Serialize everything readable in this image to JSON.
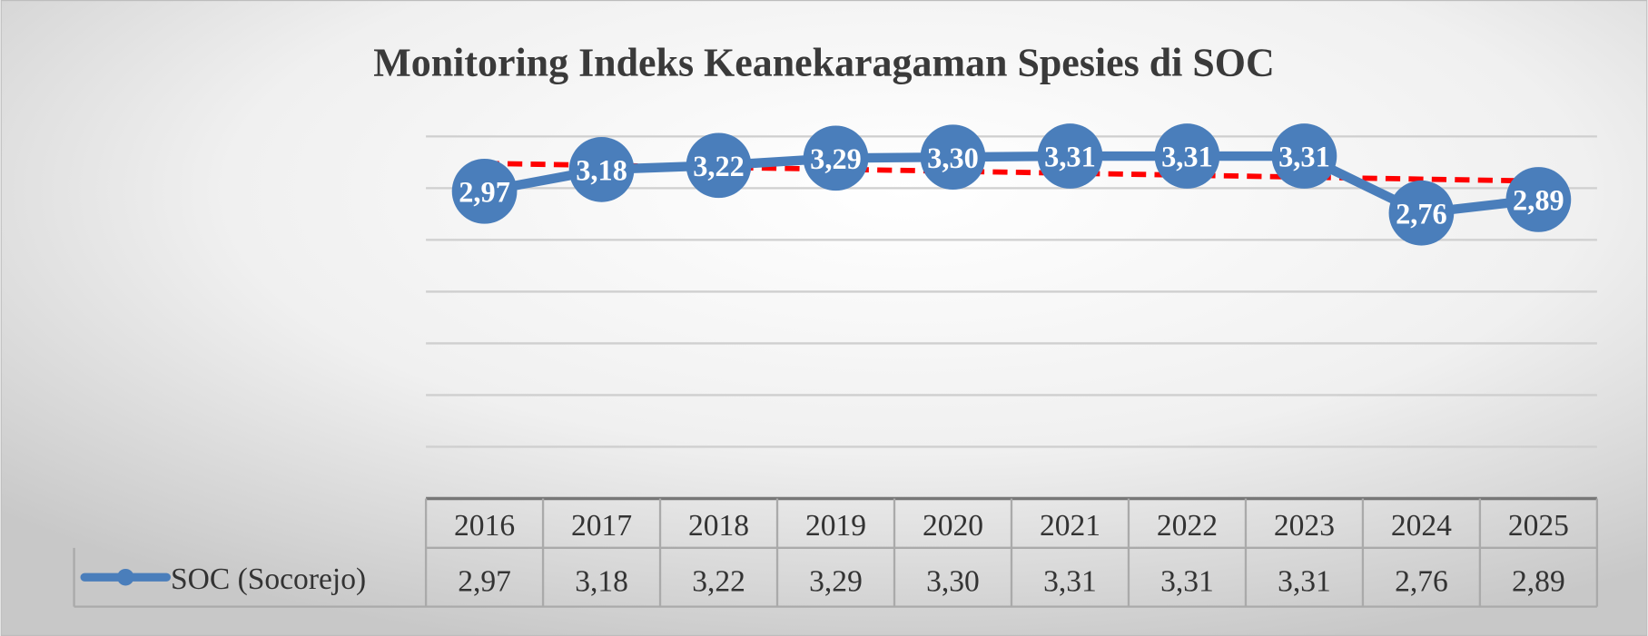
{
  "chart_data": {
    "type": "line",
    "title": "Monitoring Indeks Keanekaragaman Spesies di SOC",
    "categories": [
      "2016",
      "2017",
      "2018",
      "2019",
      "2020",
      "2021",
      "2022",
      "2023",
      "2024",
      "2025"
    ],
    "series": [
      {
        "name": "SOC (Socorejo)",
        "values": [
          2.97,
          3.18,
          3.22,
          3.29,
          3.3,
          3.31,
          3.31,
          3.31,
          2.76,
          2.89
        ],
        "labels": [
          "2,97",
          "3,18",
          "3,22",
          "3,29",
          "3,30",
          "3,31",
          "3,31",
          "3,31",
          "2,76",
          "2,89"
        ],
        "color": "#4a7ebb"
      }
    ],
    "trendline": {
      "type": "linear",
      "color": "#ff0000",
      "style": "dashed"
    },
    "ylim": [
      0,
      3.5
    ],
    "ystep": 0.5,
    "y_axis_labels_shown": false,
    "grid": true,
    "data_table": true,
    "xlabel": "",
    "ylabel": ""
  }
}
